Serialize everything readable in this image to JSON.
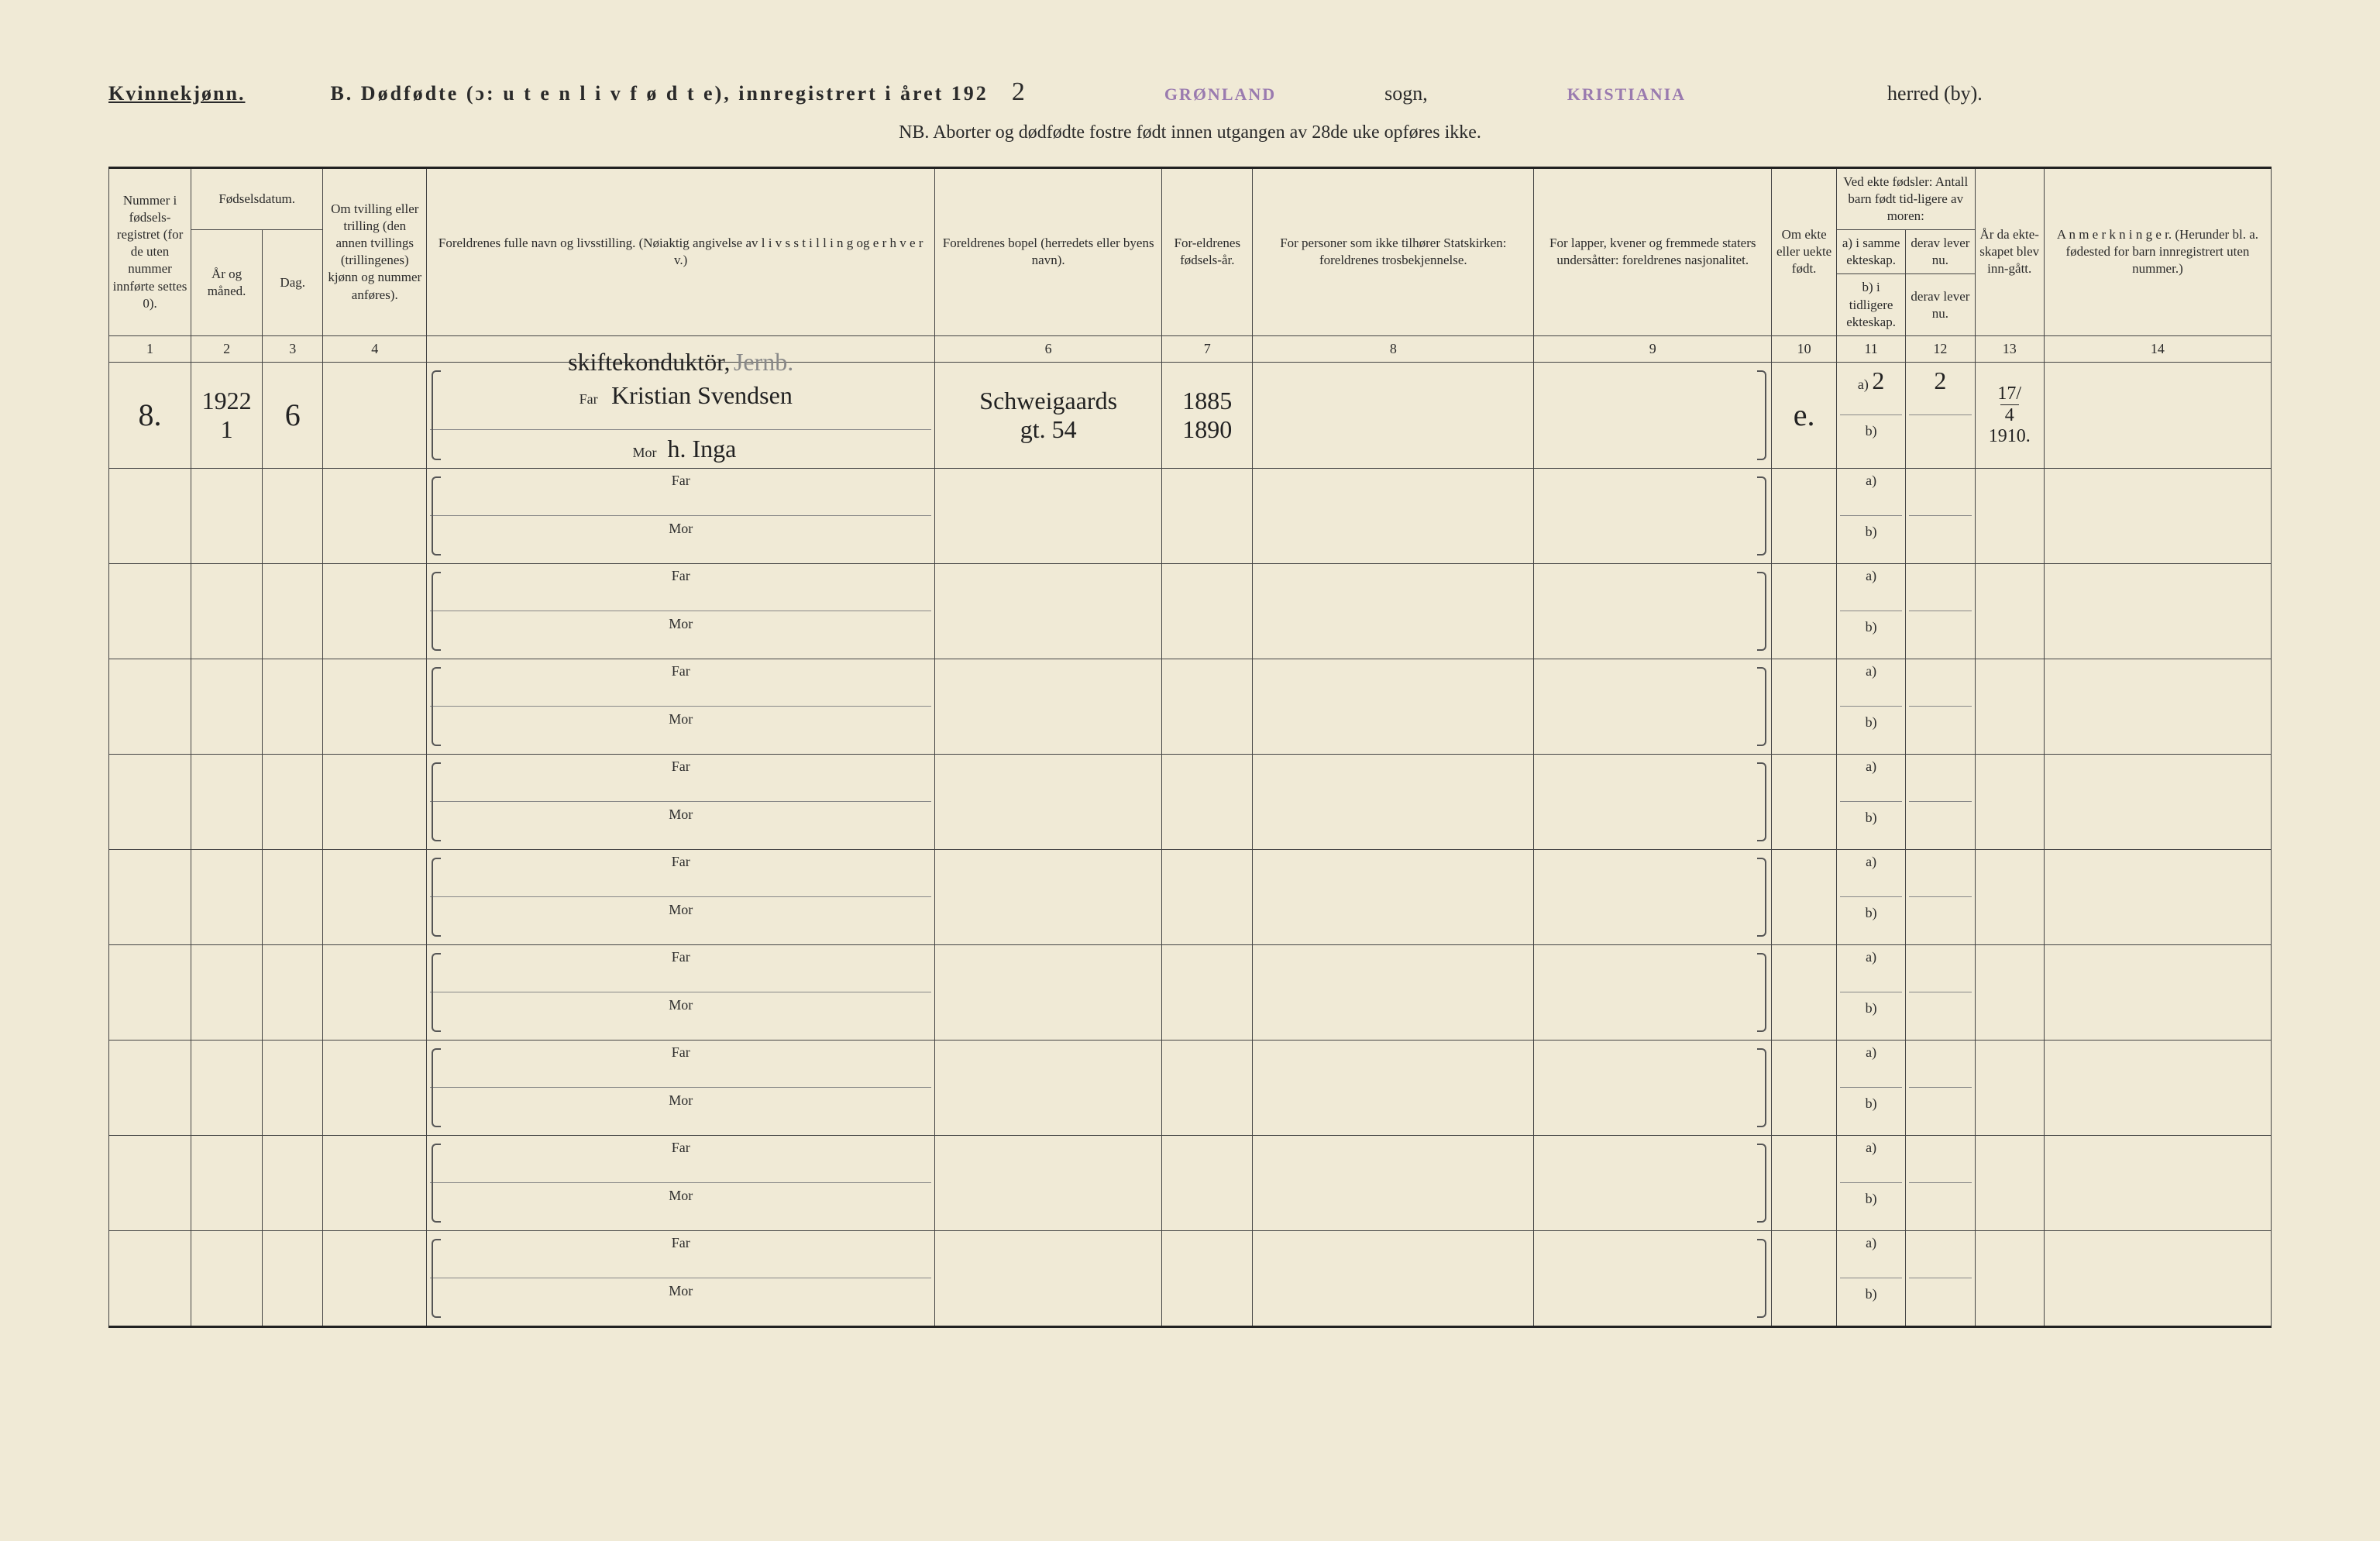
{
  "header": {
    "gender": "Kvinnekjønn.",
    "title_prefix": "B.  Dødfødte (ɔ:  u t e n  l i v  f ø d t e),  innregistrert i året 192",
    "year_hand": "2",
    "parish_stamp": "GRØNLAND",
    "sogn_label": "sogn,",
    "district_stamp": "KRISTIANIA",
    "herred_label": "herred (by).",
    "nb_line": "NB.   Aborter og dødfødte fostre født innen utgangen av 28de uke opføres ikke."
  },
  "columns": {
    "c1": "Nummer i fødsels-registret (for de uten nummer innførte settes 0).",
    "c2_top": "Fødselsdatum.",
    "c2a": "År og måned.",
    "c2b": "Dag.",
    "c4": "Om tvilling eller trilling (den annen tvillings (trillingenes) kjønn og nummer anføres).",
    "c5": "Foreldrenes fulle navn og livsstilling. (Nøiaktig angivelse av  l i v s s t i l l i n g  og  e r h v e r v.)",
    "c6": "Foreldrenes bopel (herredets eller byens navn).",
    "c7": "For-eldrenes fødsels-år.",
    "c8": "For personer som ikke tilhører Statskirken: foreldrenes trosbekjennelse.",
    "c9": "For lapper, kvener og fremmede staters undersåtter: foreldrenes nasjonalitet.",
    "c10": "Om ekte eller uekte født.",
    "c11_top": "Ved ekte fødsler: Antall barn født tid-ligere av moren:",
    "c11a": "a) i samme ekteskap.",
    "c11b": "b) i tidligere ekteskap.",
    "c12a": "derav lever nu.",
    "c12b": "derav lever nu.",
    "c13": "År da ekte-skapet blev inn-gått.",
    "c14": "A n m e r k n i n g e r. (Herunder bl. a. fødested for barn innregistrert uten nummer.)"
  },
  "colnums": [
    "1",
    "2",
    "3",
    "4",
    "",
    "6",
    "7",
    "8",
    "9",
    "10",
    "11",
    "12",
    "13",
    "14"
  ],
  "row1": {
    "num": "8.",
    "year": "1922",
    "month": "1",
    "day": "6",
    "occupation": "skiftekonduktör,",
    "occupation2": "Jernb.",
    "far_label": "Far",
    "far_name": "Kristian Svendsen",
    "mor_label": "Mor",
    "mor_name": "h. Inga",
    "bopel1": "Schweigaards",
    "bopel2": "gt. 54",
    "far_year": "1885",
    "mor_year": "1890",
    "ekte": "e.",
    "a_label": "a)",
    "a_val": "2",
    "b_label": "b)",
    "derav_a": "2",
    "year_married1": "17/",
    "year_married2": "4",
    "year_married3": "1910."
  },
  "labels": {
    "far": "Far",
    "mor": "Mor",
    "a": "a)",
    "b": "b)"
  },
  "styling": {
    "page_bg": "#f0ead6",
    "text_color": "#2a2a2a",
    "stamp_color": "#9a7baf",
    "border_color": "#444",
    "handwriting_color": "#222",
    "col_widths_pct": [
      3.8,
      3.3,
      2.8,
      4.8,
      23.5,
      10.5,
      4.2,
      13.0,
      11.0,
      3.0,
      3.2,
      3.2,
      3.2,
      10.5
    ]
  }
}
